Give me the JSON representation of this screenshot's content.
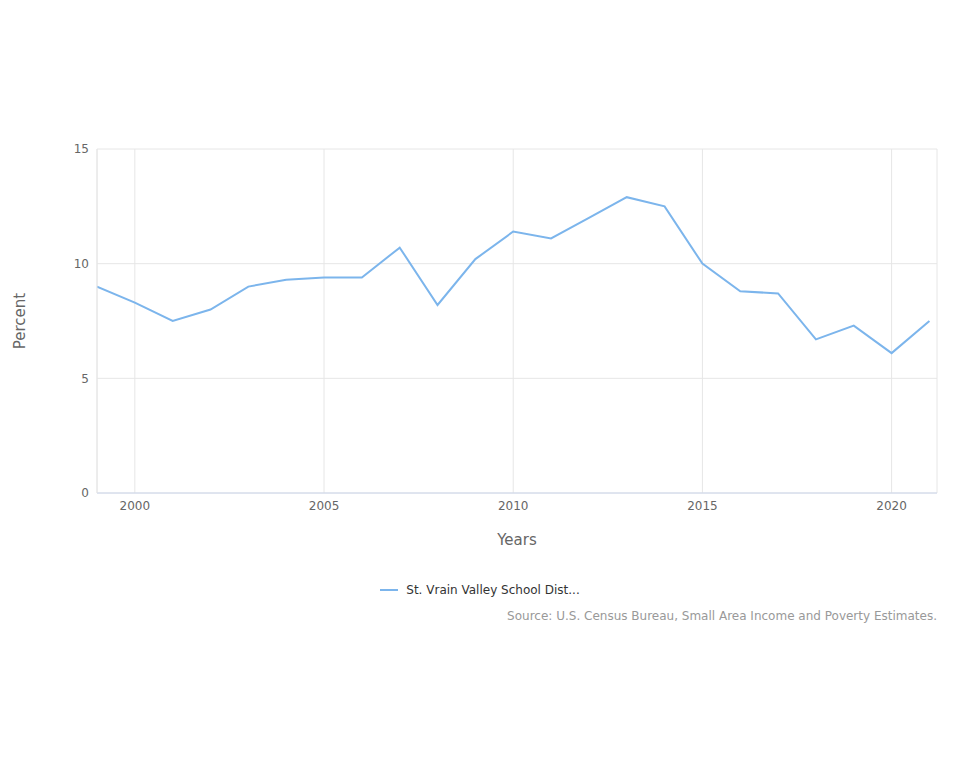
{
  "chart_data": {
    "type": "line",
    "x_label": "Years",
    "y_label": "Percent",
    "source": "Source: U.S. Census Bureau, Small Area Income and Poverty Estimates.",
    "x": [
      1999,
      2000,
      2001,
      2002,
      2003,
      2004,
      2005,
      2006,
      2007,
      2008,
      2009,
      2010,
      2011,
      2012,
      2013,
      2014,
      2015,
      2016,
      2017,
      2018,
      2019,
      2020,
      2021
    ],
    "series": [
      {
        "name": "St. Vrain Valley School Dist...",
        "color": "#7cb5ec",
        "values": [
          9.0,
          8.3,
          7.5,
          8.0,
          9.0,
          9.3,
          9.4,
          9.4,
          10.7,
          8.2,
          10.2,
          11.4,
          11.1,
          12.0,
          12.9,
          12.5,
          10.0,
          8.8,
          8.7,
          6.7,
          7.3,
          6.1,
          7.5
        ]
      }
    ],
    "xlim": [
      1999,
      2021.2
    ],
    "xticks": [
      2000,
      2005,
      2010,
      2015,
      2020
    ],
    "ylim": [
      0,
      15
    ],
    "yticks": [
      0,
      5,
      10,
      15
    ],
    "grid": true,
    "legend": "bottom"
  }
}
